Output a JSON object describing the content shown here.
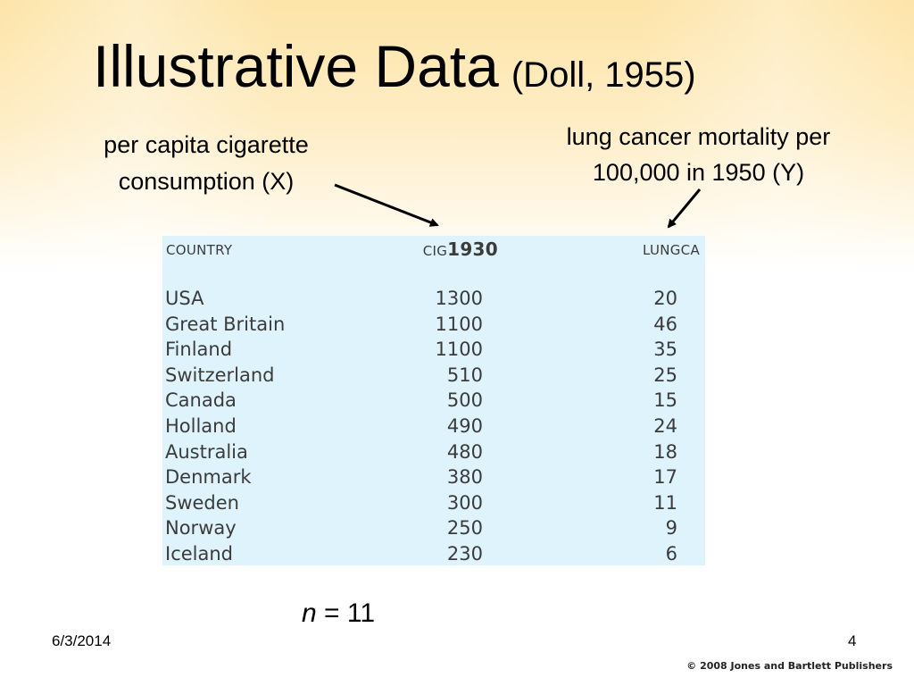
{
  "slide": {
    "title": "Illustrative Data",
    "title_sub": "(Doll, 1955)",
    "label_x": [
      "per capita cigarette",
      "consumption (X)"
    ],
    "label_y": [
      "lung cancer mortality per",
      "100,000 in 1950 (Y)"
    ],
    "n_var": "n",
    "n_rest": " = 11",
    "date": "6/3/2014",
    "page_number": "4",
    "copyright": "© 2008 Jones and Bartlett Publishers"
  },
  "table": {
    "headers": {
      "country": "COUNTRY",
      "cig_prefix": "CIG",
      "cig_year": "1930",
      "lungca": "LUNGCA"
    },
    "rows": [
      {
        "country": "USA",
        "cig": "1300",
        "lungca": "20"
      },
      {
        "country": "Great Britain",
        "cig": "1100",
        "lungca": "46"
      },
      {
        "country": "Finland",
        "cig": "1100",
        "lungca": "35"
      },
      {
        "country": "Switzerland",
        "cig": "510",
        "lungca": "25"
      },
      {
        "country": "Canada",
        "cig": "500",
        "lungca": "15"
      },
      {
        "country": "Holland",
        "cig": "490",
        "lungca": "24"
      },
      {
        "country": "Australia",
        "cig": "480",
        "lungca": "18"
      },
      {
        "country": "Denmark",
        "cig": "380",
        "lungca": "17"
      },
      {
        "country": "Sweden",
        "cig": "300",
        "lungca": "11"
      },
      {
        "country": "Norway",
        "cig": "250",
        "lungca": "9"
      },
      {
        "country": "Iceland",
        "cig": "230",
        "lungca": "6"
      }
    ]
  },
  "colors": {
    "table_bg": "#dff3fc",
    "header_gradient": "#fde4a8"
  }
}
